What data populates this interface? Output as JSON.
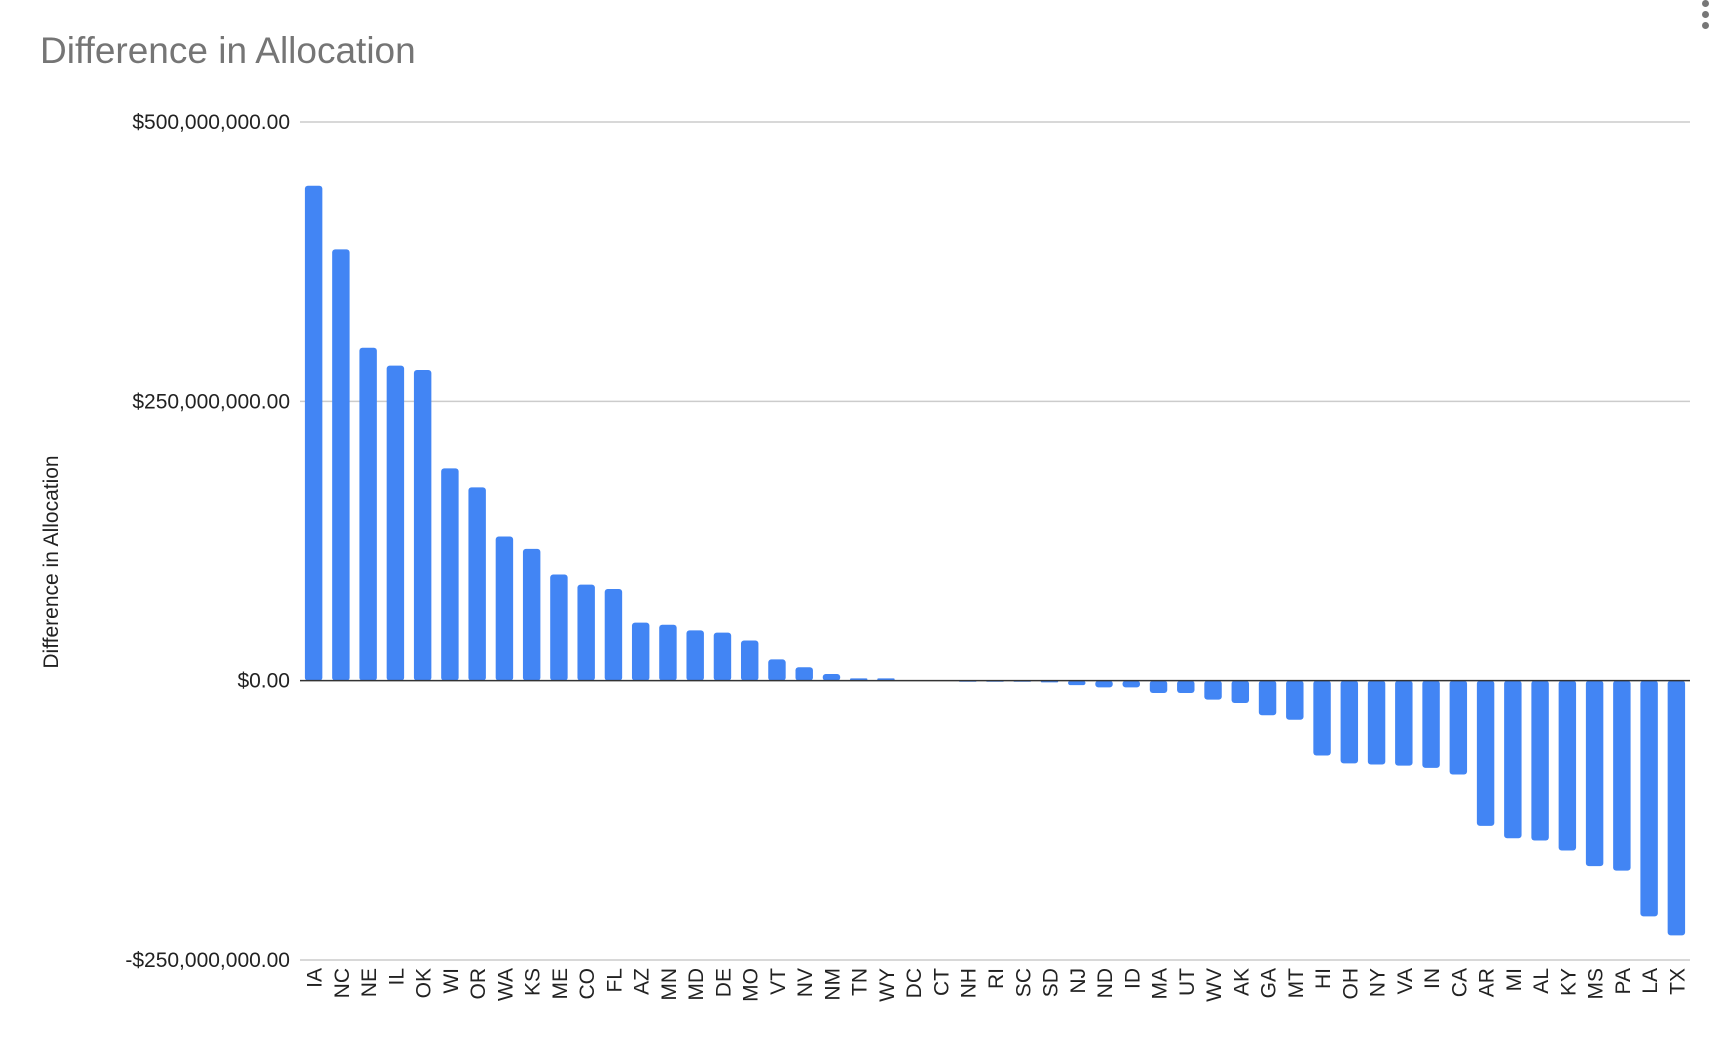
{
  "chart_data": {
    "type": "bar",
    "title": "Difference in Allocation",
    "ylabel": "Difference in Allocation",
    "xlabel": "",
    "ylim": [
      -250000000,
      500000000
    ],
    "yticks": [
      500000000,
      250000000,
      0,
      -250000000
    ],
    "ytick_labels": [
      "$500,000,000.00",
      "$250,000,000.00",
      "$0.00",
      "-$250,000,000.00"
    ],
    "grid": true,
    "legend": "none",
    "bar_color": "#4285f4",
    "categories": [
      "IA",
      "NC",
      "NE",
      "IL",
      "OK",
      "WI",
      "OR",
      "WA",
      "KS",
      "ME",
      "CO",
      "FL",
      "AZ",
      "MN",
      "MD",
      "DE",
      "MO",
      "VT",
      "NV",
      "NM",
      "TN",
      "WY",
      "DC",
      "CT",
      "NH",
      "RI",
      "SC",
      "SD",
      "NJ",
      "ND",
      "ID",
      "MA",
      "UT",
      "WV",
      "AK",
      "GA",
      "MT",
      "HI",
      "OH",
      "NY",
      "VA",
      "IN",
      "CA",
      "AR",
      "MI",
      "AL",
      "KY",
      "MS",
      "PA",
      "LA",
      "TX"
    ],
    "values": [
      443000000,
      386000000,
      298000000,
      282000000,
      278000000,
      190000000,
      173000000,
      129000000,
      118000000,
      95000000,
      86000000,
      82000000,
      52000000,
      50000000,
      45000000,
      43000000,
      36000000,
      19000000,
      12000000,
      6000000,
      2000000,
      2000000,
      0,
      0,
      -1000000,
      -1000000,
      -1000000,
      -1500000,
      -4000000,
      -6000000,
      -6000000,
      -11000000,
      -11000000,
      -17000000,
      -20000000,
      -31000000,
      -35000000,
      -67000000,
      -74000000,
      -75000000,
      -76000000,
      -78000000,
      -84000000,
      -130000000,
      -141000000,
      -143000000,
      -152000000,
      -166000000,
      -170000000,
      -211000000,
      -228000000
    ]
  },
  "ui": {
    "menu_icon": "more-vert-icon"
  }
}
